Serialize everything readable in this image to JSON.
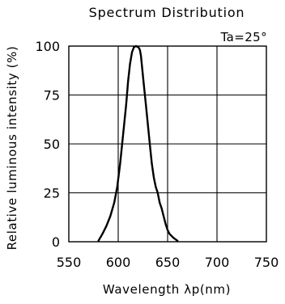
{
  "chart_data": {
    "type": "line",
    "title": "Spectrum Distribution",
    "xlabel": "Wavelength λp(nm)",
    "ylabel": "Relative luminous intensity (%)",
    "annotation": "Ta=25°",
    "xlim": [
      550,
      750
    ],
    "ylim": [
      0,
      100
    ],
    "x_ticks": [
      550,
      600,
      650,
      700,
      750
    ],
    "y_ticks": [
      0,
      25,
      50,
      75,
      100
    ],
    "grid": true,
    "line_color": "#000000",
    "x": [
      580,
      584,
      588,
      592,
      596,
      599,
      602,
      605,
      608,
      610,
      612,
      614,
      616,
      618,
      620,
      621,
      622,
      623,
      624,
      626,
      628,
      630,
      632,
      634,
      636,
      638,
      640,
      642,
      644,
      646,
      648,
      650,
      652,
      656,
      660
    ],
    "y": [
      0.5,
      4,
      8,
      13,
      20,
      28,
      40,
      55,
      70,
      82,
      91,
      97,
      99.5,
      100,
      99.5,
      99,
      98,
      95,
      90,
      80,
      70,
      60,
      50,
      40,
      33,
      28,
      25,
      20,
      17,
      13,
      9,
      6,
      4,
      2,
      0.5
    ]
  }
}
